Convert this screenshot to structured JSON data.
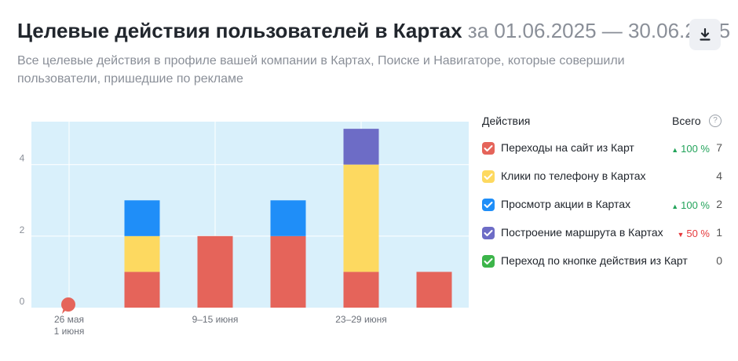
{
  "header": {
    "title": "Целевые действия пользователей в Картах",
    "period": "за 01.06.2025 — 30.06.2025",
    "subtitle": "Все целевые действия в профиле вашей компании в Картах, Поиске и Навигаторе, которые совершили пользователи, пришедшие по рекламе",
    "download_icon": "download-icon"
  },
  "legend": {
    "col_actions": "Действия",
    "col_total": "Всего",
    "help_icon": "question-icon",
    "items": [
      {
        "label": "Переходы на сайт из Карт",
        "color": "#e5645a",
        "change": "100 %",
        "change_dir": "up",
        "total": "7"
      },
      {
        "label": "Клики по телефону в Картах",
        "color": "#fdd960",
        "change": "",
        "change_dir": "",
        "total": "4"
      },
      {
        "label": "Просмотр акции в Картах",
        "color": "#1f8ef8",
        "change": "100 %",
        "change_dir": "up",
        "total": "2"
      },
      {
        "label": "Построение маршрута в Картах",
        "color": "#6d6cc6",
        "change": "50 %",
        "change_dir": "down",
        "total": "1"
      },
      {
        "label": "Переход по кнопке действия из Карт",
        "color": "#3cb54a",
        "change": "",
        "change_dir": "",
        "total": "0"
      }
    ]
  },
  "chart_data": {
    "type": "bar",
    "stacked": true,
    "x_tick_labels": [
      {
        "week": 0,
        "lines": [
          "26 мая",
          "1 июня"
        ]
      },
      {
        "week": 2,
        "lines": [
          "9–15 июня"
        ]
      },
      {
        "week": 4,
        "lines": [
          "23–29 июня"
        ]
      }
    ],
    "weeks": 6,
    "marker": {
      "week": 0,
      "color": "#e5645a"
    },
    "ylim": [
      0,
      5.2
    ],
    "yticks": [
      0,
      2,
      4
    ],
    "grid": true,
    "background": "#d9f0fb",
    "series": [
      {
        "name": "Переходы на сайт из Карт",
        "color": "#e5645a",
        "values": [
          0,
          1,
          2,
          2,
          1,
          1
        ]
      },
      {
        "name": "Клики по телефону в Картах",
        "color": "#fdd960",
        "values": [
          0,
          1,
          0,
          0,
          3,
          0
        ]
      },
      {
        "name": "Просмотр акции в Картах",
        "color": "#1f8ef8",
        "values": [
          0,
          1,
          0,
          1,
          0,
          0
        ]
      },
      {
        "name": "Построение маршрута в Картах",
        "color": "#6d6cc6",
        "values": [
          0,
          0,
          0,
          0,
          1,
          0
        ]
      },
      {
        "name": "Переход по кнопке действия из Карт",
        "color": "#3cb54a",
        "values": [
          0,
          0,
          0,
          0,
          0,
          0
        ]
      }
    ]
  }
}
